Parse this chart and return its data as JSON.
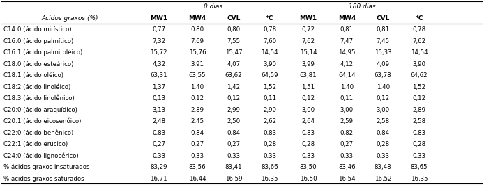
{
  "col_header_top": [
    "0 dias",
    "180 dias"
  ],
  "col_header_sub": [
    "Ácidos graxos (%)",
    "MW1",
    "MW4",
    "CVL",
    "*C",
    "MW1",
    "MW4",
    "CVL",
    "*C"
  ],
  "rows": [
    [
      "C14:0 (ácido mirístico)",
      "0,77",
      "0,80",
      "0,80",
      "0,78",
      "0,72",
      "0,81",
      "0,81",
      "0,78"
    ],
    [
      "C16:0 (ácido palmítico)",
      "7,32",
      "7,69",
      "7,55",
      "7,60",
      "7,62",
      "7,47",
      "7,45",
      "7,62"
    ],
    [
      "C16:1 (ácido palmitoléico)",
      "15,72",
      "15,76",
      "15,47",
      "14,54",
      "15,14",
      "14,95",
      "15,33",
      "14,54"
    ],
    [
      "C18:0 (ácido esteárico)",
      "4,32",
      "3,91",
      "4,07",
      "3,90",
      "3,99",
      "4,12",
      "4,09",
      "3,90"
    ],
    [
      "C18:1 (ácido oléico)",
      "63,31",
      "63,55",
      "63,62",
      "64,59",
      "63,81",
      "64,14",
      "63,78",
      "64,62"
    ],
    [
      "C18:2 (ácido linoléico)",
      "1,37",
      "1,40",
      "1,42",
      "1,52",
      "1,51",
      "1,40",
      "1,40",
      "1,52"
    ],
    [
      "C18:3 (ácido linolênico)",
      "0,13",
      "0,12",
      "0,12",
      "0,11",
      "0,12",
      "0,11",
      "0,12",
      "0,12"
    ],
    [
      "C20:0 (ácido araquídico)",
      "3,13",
      "2,89",
      "2,99",
      "2,90",
      "3,00",
      "3,00",
      "3,00",
      "2,89"
    ],
    [
      "C20:1 (ácido eicosenóico)",
      "2,48",
      "2,45",
      "2,50",
      "2,62",
      "2,64",
      "2,59",
      "2,58",
      "2,58"
    ],
    [
      "C22:0 (ácido behênico)",
      "0,83",
      "0,84",
      "0,84",
      "0,83",
      "0,83",
      "0,82",
      "0,84",
      "0,83"
    ],
    [
      "C22:1 (ácido erúcico)",
      "0,27",
      "0,27",
      "0,27",
      "0,28",
      "0,28",
      "0,27",
      "0,28",
      "0,28"
    ],
    [
      "C24:0 (ácido lignocérico)",
      "0,33",
      "0,33",
      "0,33",
      "0,33",
      "0,33",
      "0,33",
      "0,33",
      "0,33"
    ],
    [
      "% ácidos graxos insaturados",
      "83,29",
      "83,56",
      "83,41",
      "83,66",
      "83,50",
      "83,46",
      "83,48",
      "83,65"
    ],
    [
      "% ácidos graxos saturados",
      "16,71",
      "16,44",
      "16,59",
      "16,35",
      "16,50",
      "16,54",
      "16,52",
      "16,35"
    ]
  ],
  "figsize": [
    6.94,
    2.72
  ],
  "dpi": 100,
  "bg_color": "#ffffff",
  "text_color": "#000000",
  "font_size": 6.2,
  "header_font_size": 6.5
}
